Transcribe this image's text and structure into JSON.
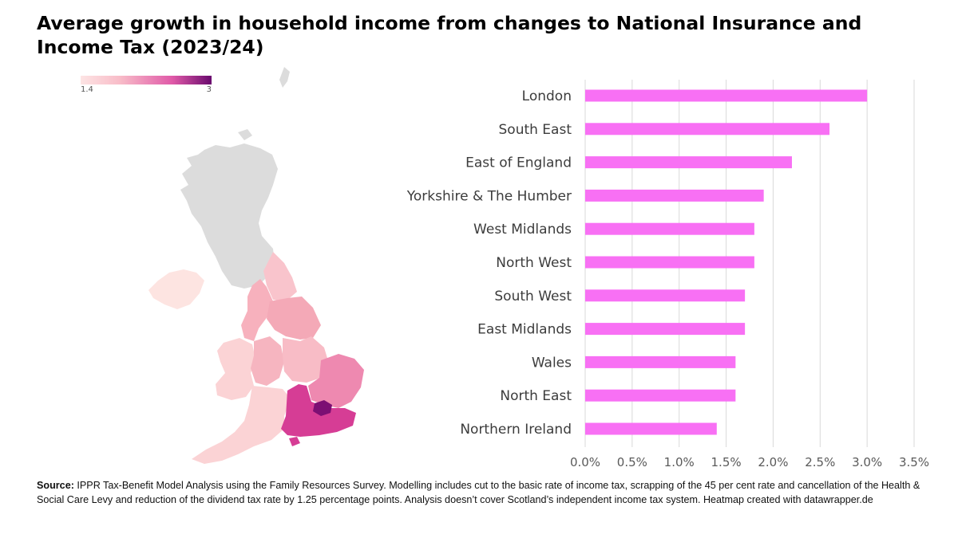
{
  "title": "Average growth in household income from changes to National Insurance and Income Tax (2023/24)",
  "legend": {
    "min_label": "1.4",
    "max_label": "3"
  },
  "colors": {
    "bar": "#f870f4",
    "grid": "#d9d9d9",
    "map_neutral": "#dcdcdc",
    "map_low": "#fde4e1",
    "map_mid": "#f7b1bd",
    "map_high": "#e774a4",
    "map_higher": "#d63d95",
    "map_max": "#7c0f73"
  },
  "map": {
    "regions": [
      {
        "name": "Scotland",
        "value": null
      },
      {
        "name": "Northern Ireland",
        "value": 1.4
      },
      {
        "name": "North East",
        "value": 1.6
      },
      {
        "name": "North West",
        "value": 1.8
      },
      {
        "name": "Yorkshire & The Humber",
        "value": 1.9
      },
      {
        "name": "Wales",
        "value": 1.6
      },
      {
        "name": "West Midlands",
        "value": 1.8
      },
      {
        "name": "East Midlands",
        "value": 1.7
      },
      {
        "name": "East of England",
        "value": 2.2
      },
      {
        "name": "South West",
        "value": 1.7
      },
      {
        "name": "South East",
        "value": 2.6
      },
      {
        "name": "London",
        "value": 3.0
      }
    ]
  },
  "chart_data": {
    "type": "bar",
    "orientation": "horizontal",
    "categories": [
      "London",
      "South East",
      "East of England",
      "Yorkshire & The Humber",
      "West Midlands",
      "North West",
      "South West",
      "East Midlands",
      "Wales",
      "North East",
      "Northern Ireland"
    ],
    "values": [
      3.0,
      2.6,
      2.2,
      1.9,
      1.8,
      1.8,
      1.7,
      1.7,
      1.6,
      1.6,
      1.4
    ],
    "xlim": [
      0,
      3.5
    ],
    "xticks": [
      "0.0%",
      "0.5%",
      "1.0%",
      "1.5%",
      "2.0%",
      "2.5%",
      "3.0%",
      "3.5%"
    ],
    "xlabel": "",
    "ylabel": "",
    "grid": true,
    "legend": "none"
  },
  "source": {
    "label": "Source:",
    "text": "IPPR Tax-Benefit Model Analysis using the Family Resources Survey. Modelling includes cut to the basic rate of income tax, scrapping of the 45 per cent rate and cancellation of the Health & Social Care Levy and reduction of the dividend tax rate by 1.25 percentage points. Analysis doesn’t cover Scotland’s independent income tax system. Heatmap created with datawrapper.de"
  }
}
